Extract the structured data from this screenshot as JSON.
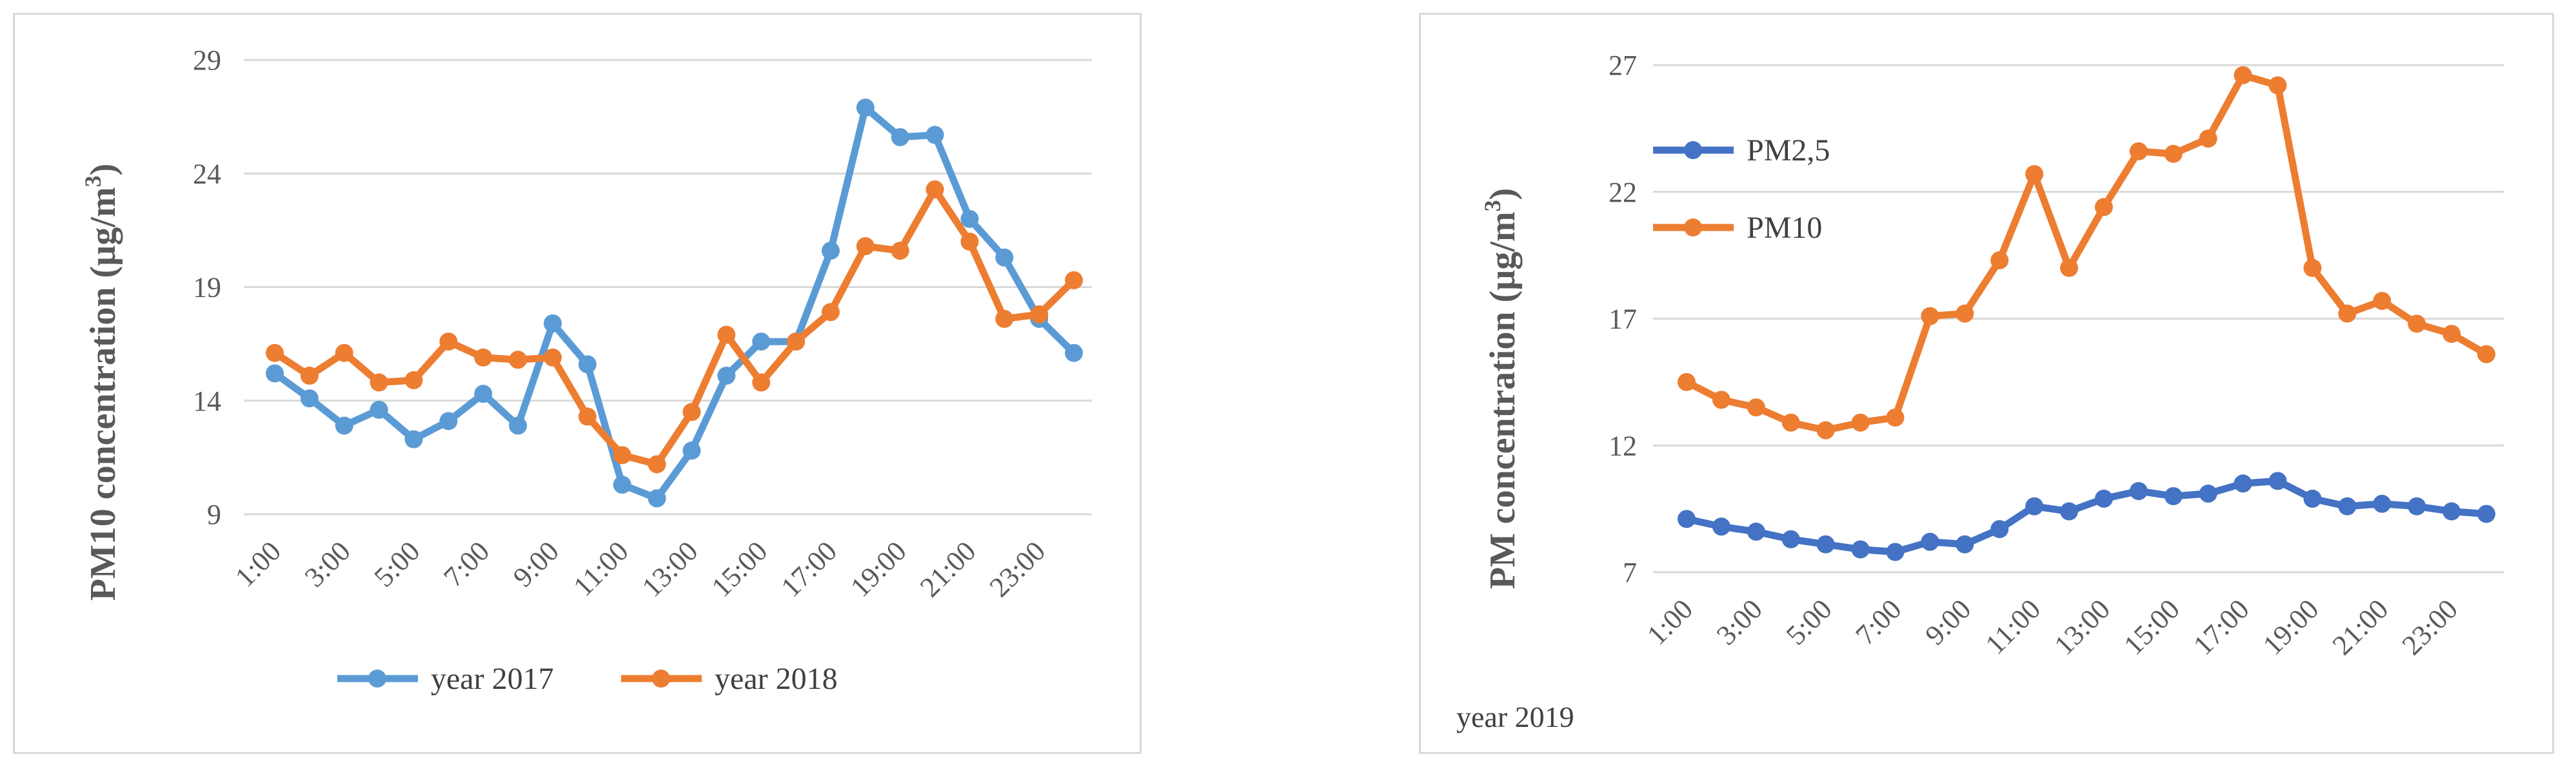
{
  "chart_data": [
    {
      "type": "line",
      "title": "",
      "xlabel": "",
      "ylabel": "PM10 concentration (µg/m³)",
      "ylabel_main": "PM10 concentration (µg/m",
      "ylabel_sup": "3",
      "ylabel_tail": ")",
      "ylim": [
        9,
        29
      ],
      "yticks": [
        9,
        14,
        19,
        24,
        29
      ],
      "grid": true,
      "legend_position": "bottom",
      "x": [
        "1:00",
        "2:00",
        "3:00",
        "4:00",
        "5:00",
        "6:00",
        "7:00",
        "8:00",
        "9:00",
        "10:00",
        "11:00",
        "12:00",
        "13:00",
        "14:00",
        "15:00",
        "16:00",
        "17:00",
        "18:00",
        "19:00",
        "20:00",
        "21:00",
        "22:00",
        "23:00",
        "24:00"
      ],
      "xtick_labels": [
        "1:00",
        "3:00",
        "5:00",
        "7:00",
        "9:00",
        "11:00",
        "13:00",
        "15:00",
        "17:00",
        "19:00",
        "21:00",
        "23:00"
      ],
      "series": [
        {
          "name": "year 2017",
          "color": "#5b9bd5",
          "values": [
            15.2,
            14.1,
            12.9,
            13.6,
            12.3,
            13.1,
            14.3,
            12.9,
            17.4,
            15.6,
            10.3,
            9.7,
            11.8,
            15.1,
            16.6,
            16.6,
            20.6,
            26.9,
            25.6,
            25.7,
            22.0,
            20.3,
            17.6,
            16.1
          ]
        },
        {
          "name": "year 2018",
          "color": "#ed7d31",
          "values": [
            16.1,
            15.1,
            16.1,
            14.8,
            14.9,
            16.6,
            15.9,
            15.8,
            15.9,
            13.3,
            11.6,
            11.2,
            13.5,
            16.9,
            14.8,
            16.6,
            17.9,
            20.8,
            20.6,
            23.3,
            21.0,
            17.6,
            17.8,
            19.3
          ]
        }
      ]
    },
    {
      "type": "line",
      "title": "",
      "xlabel": "",
      "ylabel": "PM concentration (µg/m³)",
      "ylabel_main": "PM concentration (µg/m",
      "ylabel_sup": "3",
      "ylabel_tail": ")",
      "note": "year 2019",
      "ylim": [
        7,
        27
      ],
      "yticks": [
        7,
        12,
        17,
        22,
        27
      ],
      "grid": true,
      "legend_position": "top-left",
      "x": [
        "1:00",
        "2:00",
        "3:00",
        "4:00",
        "5:00",
        "6:00",
        "7:00",
        "8:00",
        "9:00",
        "10:00",
        "11:00",
        "12:00",
        "13:00",
        "14:00",
        "15:00",
        "16:00",
        "17:00",
        "18:00",
        "19:00",
        "20:00",
        "21:00",
        "22:00",
        "23:00",
        "24:00"
      ],
      "xtick_labels": [
        "1:00",
        "3:00",
        "5:00",
        "7:00",
        "9:00",
        "11:00",
        "13:00",
        "15:00",
        "17:00",
        "19:00",
        "21:00",
        "23:00"
      ],
      "series": [
        {
          "name": "PM2,5",
          "color": "#4472c4",
          "values": [
            9.1,
            8.8,
            8.6,
            8.3,
            8.1,
            7.9,
            7.8,
            8.2,
            8.1,
            8.7,
            9.6,
            9.4,
            9.9,
            10.2,
            10.0,
            10.1,
            10.5,
            10.6,
            9.9,
            9.6,
            9.7,
            9.6,
            9.4,
            9.3
          ]
        },
        {
          "name": "PM10",
          "color": "#ed7d31",
          "values": [
            14.5,
            13.8,
            13.5,
            12.9,
            12.6,
            12.9,
            13.1,
            17.1,
            17.2,
            19.3,
            22.7,
            19.0,
            21.4,
            23.6,
            23.5,
            24.1,
            26.6,
            26.2,
            19.0,
            17.2,
            17.7,
            16.8,
            16.4,
            15.6
          ]
        }
      ]
    }
  ]
}
